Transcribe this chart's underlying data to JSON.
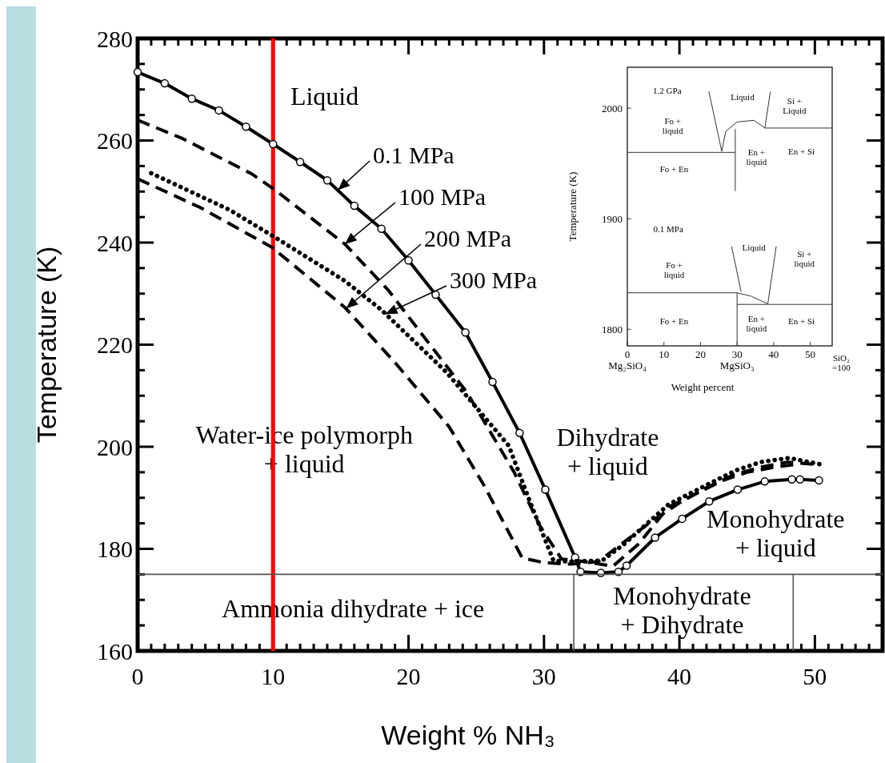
{
  "chart_data": [
    {
      "type": "line",
      "xlabel": "Weight % NH₃",
      "ylabel": "Temperature (K)",
      "xlim": [
        0,
        55
      ],
      "ylim": [
        160,
        280
      ],
      "xticks": [
        0,
        {
          "value": 1,
          "label": null
        },
        {
          "value": 2,
          "label": null
        },
        {
          "value": 3,
          "label": null
        },
        {
          "value": 4,
          "label": null
        },
        {
          "value": 5,
          "label": null
        },
        {
          "value": 6,
          "label": null
        },
        {
          "value": 7,
          "label": null
        },
        {
          "value": 8,
          "label": null
        },
        {
          "value": 9,
          "label": null
        },
        10,
        {
          "value": 11,
          "label": null
        },
        {
          "value": 12,
          "label": null
        },
        {
          "value": 13,
          "label": null
        },
        {
          "value": 14,
          "label": null
        },
        {
          "value": 15,
          "label": null
        },
        {
          "value": 16,
          "label": null
        },
        {
          "value": 17,
          "label": null
        },
        {
          "value": 18,
          "label": null
        },
        {
          "value": 19,
          "label": null
        },
        20,
        {
          "value": 21,
          "label": null
        },
        {
          "value": 22,
          "label": null
        },
        {
          "value": 23,
          "label": null
        },
        {
          "value": 24,
          "label": null
        },
        {
          "value": 25,
          "label": null
        },
        {
          "value": 26,
          "label": null
        },
        {
          "value": 27,
          "label": null
        },
        {
          "value": 28,
          "label": null
        },
        {
          "value": 29,
          "label": null
        },
        30,
        {
          "value": 31,
          "label": null
        },
        {
          "value": 32,
          "label": null
        },
        {
          "value": 33,
          "label": null
        },
        {
          "value": 34,
          "label": null
        },
        {
          "value": 35,
          "label": null
        },
        {
          "value": 36,
          "label": null
        },
        {
          "value": 37,
          "label": null
        },
        {
          "value": 38,
          "label": null
        },
        {
          "value": 39,
          "label": null
        },
        40,
        {
          "value": 41,
          "label": null
        },
        {
          "value": 42,
          "label": null
        },
        {
          "value": 43,
          "label": null
        },
        {
          "value": 44,
          "label": null
        },
        {
          "value": 45,
          "label": null
        },
        {
          "value": 46,
          "label": null
        },
        {
          "value": 47,
          "label": null
        },
        {
          "value": 48,
          "label": null
        },
        {
          "value": 49,
          "label": null
        },
        50,
        {
          "value": 51,
          "label": null
        },
        {
          "value": 52,
          "label": null
        },
        {
          "value": 53,
          "label": null
        },
        {
          "value": 54,
          "label": null
        }
      ],
      "yticks": [
        160,
        {
          "value": 165,
          "label": null
        },
        {
          "value": 170,
          "label": null
        },
        {
          "value": 175,
          "label": null
        },
        180,
        {
          "value": 185,
          "label": null
        },
        {
          "value": 190,
          "label": null
        },
        {
          "value": 195,
          "label": null
        },
        200,
        {
          "value": 205,
          "label": null
        },
        {
          "value": 210,
          "label": null
        },
        {
          "value": 215,
          "label": null
        },
        220,
        {
          "value": 225,
          "label": null
        },
        {
          "value": 230,
          "label": null
        },
        {
          "value": 235,
          "label": null
        },
        240,
        {
          "value": 245,
          "label": null
        },
        {
          "value": 250,
          "label": null
        },
        {
          "value": 255,
          "label": null
        },
        260,
        {
          "value": 265,
          "label": null
        },
        {
          "value": 270,
          "label": null
        },
        {
          "value": 275,
          "label": null
        },
        280
      ],
      "series": [
        {
          "color": "#000000",
          "line_style": "solid",
          "marker": "circle",
          "x": [
            0,
            2,
            4,
            6,
            8,
            10,
            12,
            14,
            16,
            18,
            20,
            22,
            24.2,
            26.2,
            28.2,
            30.1,
            32.3,
            32.7,
            34.2,
            35.5,
            36.1,
            38.2,
            40.2,
            42.2,
            44.3,
            46.3,
            48.3,
            48.9,
            50.3
          ],
          "values": [
            273.4,
            271.2,
            268.2,
            265.9,
            262.7,
            259.3,
            255.8,
            252.2,
            247.2,
            242.7,
            236.5,
            229.8,
            222.4,
            212.7,
            202.7,
            191.6,
            178.3,
            175.5,
            175.3,
            175.5,
            176.7,
            182.2,
            185.9,
            189.3,
            191.6,
            193.2,
            193.6,
            193.6,
            193.4
          ]
        },
        {
          "color": "#000000",
          "line_style": "dashed",
          "x": [
            0,
            3.3,
            8.4,
            10.1,
            13.4,
            15.3,
            18.5,
            21,
            24.3,
            27.8,
            29.7,
            31.3,
            33,
            35.1,
            37,
            39.2,
            41,
            43.2,
            45,
            47,
            48.5
          ],
          "values": [
            264,
            260.4,
            253.5,
            250.4,
            243.6,
            239.7,
            230.7,
            222,
            210.7,
            195,
            184.5,
            178,
            177.5,
            176.6,
            181,
            188.2,
            190.5,
            193.4,
            195,
            196,
            196.5
          ]
        },
        {
          "color": "#000000",
          "line_style": "dashed",
          "x": [
            0,
            4.6,
            9.9,
            15.3,
            19,
            23,
            25.6,
            28.4,
            30,
            32,
            34,
            36,
            38,
            40,
            42,
            44,
            46,
            48,
            50.3
          ],
          "values": [
            252.5,
            246.9,
            239.1,
            227.3,
            216.5,
            203.9,
            192.3,
            178.2,
            177.3,
            177,
            177.5,
            181.5,
            185.5,
            189,
            192,
            194.5,
            196,
            197,
            196.5
          ]
        },
        {
          "color": "#000000",
          "line_style": "dotted",
          "x": [
            1,
            6.8,
            10.1,
            15.3,
            18,
            22.8,
            27.4,
            29,
            30.7,
            32,
            34.3,
            35.9,
            39.2,
            42,
            44.2,
            46,
            48.1,
            50.5
          ],
          "values": [
            253.6,
            246.4,
            241.1,
            232.5,
            226.8,
            214.6,
            200.2,
            189,
            177.7,
            177.5,
            177.7,
            180.9,
            188.7,
            192.5,
            195.4,
            197,
            197.8,
            196.5
          ]
        },
        {
          "color": "#555555",
          "x": [
            0,
            55
          ],
          "values": [
            175,
            175
          ]
        },
        {
          "color": "#555555",
          "x": [
            32.2,
            32.2
          ],
          "values": [
            160,
            175
          ]
        },
        {
          "color": "#555555",
          "x": [
            48.4,
            48.4
          ],
          "values": [
            160,
            175
          ]
        }
      ],
      "ref_lines": [
        {
          "axis": "x",
          "value": 10,
          "color": "#ff0000"
        }
      ],
      "annotations": [
        "Liquid",
        "Water-ice polymorph\n+ liquid",
        "Ammonia dihydrate + ice",
        "Dihydrate\n+ liquid",
        "Monohydrate\n+ liquid",
        "Monohydrate\n+ Dihydrate",
        {
          "text": "0.1 MPa",
          "x": 14.8,
          "y": 250.3
        },
        {
          "text": "100 MPa",
          "x": 15.3,
          "y": 239.7
        },
        {
          "text": "200 MPa",
          "x": 15.4,
          "y": 227.1
        },
        {
          "text": "300 MPa",
          "x": 18.3,
          "y": 226.0
        }
      ]
    },
    {
      "type": "line",
      "xlabel": "Weight percent",
      "ylabel": "Temperature (K)",
      "xlim": [
        0,
        56
      ],
      "ylim": [
        1785,
        2037
      ],
      "xticks": [
        {
          "value": 0,
          "label": "0\nMg₂SiO₄"
        },
        10,
        20,
        {
          "value": 30,
          "label": "30\nMgSiO₃"
        },
        40,
        50
      ],
      "yticks": [
        1800,
        1900,
        2000
      ],
      "series": [
        {
          "color": "#333333",
          "x": [
            0,
            29.5
          ],
          "values": [
            1960,
            1960
          ]
        },
        {
          "color": "#333333",
          "x": [
            29.5,
            29.5
          ],
          "values": [
            1981,
            1925
          ]
        },
        {
          "color": "#333333",
          "x": [
            37.6,
            56
          ],
          "values": [
            1982,
            1982
          ]
        },
        {
          "color": "#333333",
          "x": [
            22.3,
            25.8
          ],
          "values": [
            2015,
            1961
          ]
        },
        {
          "color": "#333333",
          "x": [
            25.8,
            26.9,
            30,
            34.6,
            37.6,
            39.1
          ],
          "values": [
            1961,
            1979,
            1987.5,
            1989,
            1982,
            2015
          ]
        },
        {
          "color": "#333333",
          "x": [
            0,
            30,
            33.8,
            38.4
          ],
          "values": [
            1833,
            1833,
            1830,
            1823
          ]
        },
        {
          "color": "#333333",
          "x": [
            30,
            56
          ],
          "values": [
            1822.5,
            1822.5
          ]
        },
        {
          "color": "#333333",
          "x": [
            30,
            30
          ],
          "values": [
            1833,
            1785
          ]
        },
        {
          "color": "#333333",
          "x": [
            28.5,
            31.1
          ],
          "values": [
            1875,
            1834
          ]
        },
        {
          "color": "#333333",
          "x": [
            40.7,
            38.4
          ],
          "values": [
            1875,
            1823
          ]
        }
      ],
      "annotations": [
        "1.2 GPa",
        "Liquid",
        "Si +\nLiquid",
        "Fo +\nliquid",
        "Fo + En",
        "En +\nliquid",
        "En + Si",
        "0.1 MPa",
        "Liquid",
        "Si +\nliquid",
        "Fo +\nliquid",
        "Fo + En",
        "En +\nliquid",
        "En + Si",
        "SiO₂\n=100"
      ]
    }
  ]
}
